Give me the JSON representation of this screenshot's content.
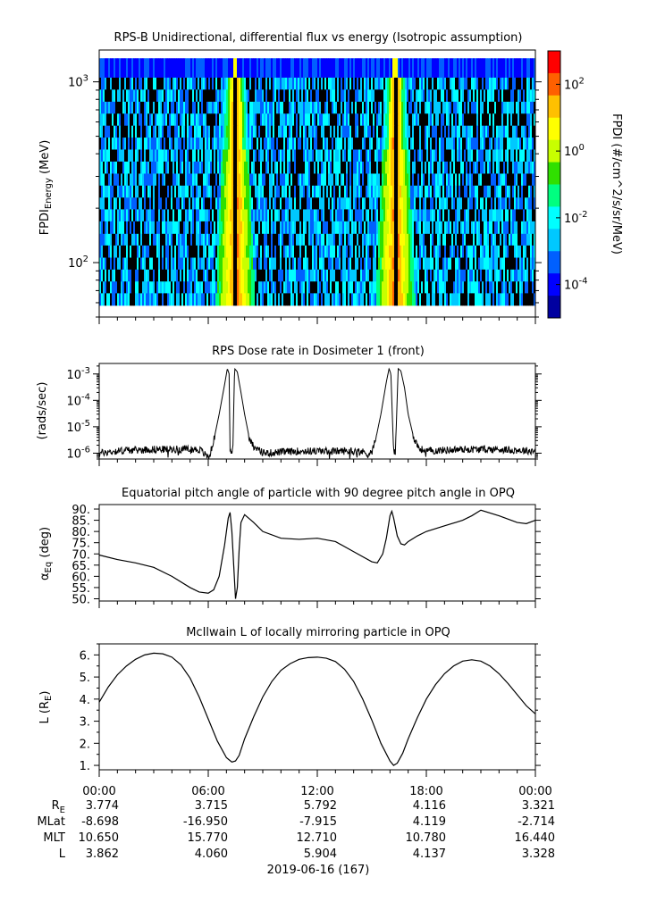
{
  "chart_data": [
    {
      "type": "heatmap",
      "title": "RPS-B  Unidirectional, differential flux vs energy (Isotropic assumption)",
      "ylabel": "FPDI",
      "ylabel_sub": "Energy",
      "ylabel_unit": "(MeV)",
      "y_scale": "log",
      "ylim": [
        50,
        1500
      ],
      "y_ticks": [
        {
          "value": 100,
          "base": "10",
          "exp": "2"
        },
        {
          "value": 1000,
          "base": "10",
          "exp": "3"
        }
      ],
      "x_range_hours": [
        0,
        24
      ],
      "energy_bins": [
        58,
        68,
        79,
        92,
        107,
        125,
        145,
        170,
        198,
        230,
        268,
        312,
        364,
        424,
        494,
        575,
        670,
        780,
        910,
        1060,
        1350
      ],
      "enhancement_centers_hours": [
        7.5,
        16.3
      ],
      "colorbar": {
        "label": "FPDI (#/cm^2/s/sr/MeV)",
        "scale": "log",
        "range_log10": [
          -5,
          3
        ],
        "ticks": [
          {
            "base": "10",
            "exp": "2",
            "value": 2
          },
          {
            "base": "10",
            "exp": "0",
            "value": 0
          },
          {
            "base": "10",
            "exp": "-2",
            "value": -2
          },
          {
            "base": "10",
            "exp": "-4",
            "value": -4
          }
        ],
        "colors": [
          "#0000a0",
          "#0000ff",
          "#0060ff",
          "#00c8ff",
          "#00ffff",
          "#00ff80",
          "#30e000",
          "#c8ff00",
          "#ffff00",
          "#ffc000",
          "#ff6000",
          "#ff0000"
        ]
      }
    },
    {
      "type": "line",
      "title": "RPS  Dose rate in Dosimeter 1 (front)",
      "ylabel": "(rads/sec)",
      "y_scale": "log",
      "ylim": [
        6e-07,
        0.0025
      ],
      "y_ticks": [
        {
          "value": 1e-06,
          "base": "10",
          "exp": "-6"
        },
        {
          "value": 1e-05,
          "base": "10",
          "exp": "-5"
        },
        {
          "value": 0.0001,
          "base": "10",
          "exp": "-4"
        },
        {
          "value": 0.001,
          "base": "10",
          "exp": "-3"
        }
      ],
      "x": [
        0,
        0.5,
        1,
        1.5,
        2,
        3,
        4,
        5,
        5.6,
        5.8,
        6.05,
        6.3,
        6.6,
        6.9,
        7.05,
        7.15,
        7.2,
        7.35,
        7.45,
        7.6,
        7.8,
        8.0,
        8.25,
        8.5,
        8.8,
        9.2,
        10,
        11,
        12,
        13,
        14,
        14.6,
        14.8,
        15.0,
        15.2,
        15.5,
        15.8,
        15.95,
        16.05,
        16.2,
        16.3,
        16.45,
        16.6,
        16.8,
        17.0,
        17.3,
        17.6,
        18,
        19,
        20,
        21,
        22,
        23,
        24
      ],
      "values": [
        1e-06,
        1.1e-06,
        1.2e-06,
        1.3e-06,
        1.3e-06,
        1.4e-06,
        1.4e-06,
        1.45e-06,
        1.3e-06,
        9e-07,
        7e-07,
        3e-06,
        3e-05,
        0.0004,
        0.0016,
        0.001,
        1e-06,
        1.2e-06,
        0.0016,
        0.0012,
        0.0002,
        3e-05,
        4e-06,
        1.8e-06,
        1.2e-06,
        1e-06,
        1.1e-06,
        1.2e-06,
        1.2e-06,
        1.2e-06,
        1.2e-06,
        1.1e-06,
        9e-07,
        1.1e-06,
        3e-06,
        3e-05,
        0.0005,
        0.0016,
        0.001,
        1e-06,
        1.1e-06,
        0.0016,
        0.0013,
        0.0003,
        3e-05,
        4e-06,
        1.5e-06,
        1.2e-06,
        1.3e-06,
        1.4e-06,
        1.4e-06,
        1.4e-06,
        1.3e-06,
        1.2e-06
      ]
    },
    {
      "type": "line",
      "title": "Equatorial pitch angle of particle with 90 degree pitch angle in OPQ",
      "ylabel": "α",
      "ylabel_sub": "Eq",
      "ylabel_unit": "(deg)",
      "ylim": [
        49,
        92
      ],
      "y_ticks": [
        "50.",
        "55.",
        "60.",
        "65.",
        "70.",
        "75.",
        "80.",
        "85.",
        "90."
      ],
      "x": [
        0,
        1,
        2,
        3,
        4,
        5,
        5.5,
        6.0,
        6.3,
        6.6,
        6.9,
        7.1,
        7.2,
        7.3,
        7.4,
        7.5,
        7.6,
        7.7,
        7.8,
        8.0,
        8.5,
        9,
        10,
        11,
        12,
        13,
        14,
        15,
        15.3,
        15.6,
        15.8,
        16.0,
        16.1,
        16.2,
        16.4,
        16.6,
        16.8,
        17.0,
        17.5,
        18,
        19,
        20,
        20.5,
        21,
        22,
        23,
        23.5,
        24
      ],
      "values": [
        69.5,
        67.5,
        66,
        64,
        60,
        55,
        53,
        52.5,
        54,
        60,
        74,
        86,
        88.5,
        80,
        65,
        50,
        55,
        72,
        84,
        87.5,
        84,
        80,
        77,
        76.5,
        77,
        75.5,
        71,
        66.5,
        66,
        70,
        77,
        87,
        89,
        86,
        78,
        74.5,
        74,
        75.5,
        78,
        80,
        82.5,
        85,
        87,
        89.5,
        87,
        84,
        83.5,
        85
      ]
    },
    {
      "type": "line",
      "title": "McIlwain L of locally mirroring particle in OPQ",
      "ylabel": "L (R",
      "ylabel_sub": "E",
      "ylabel_unit": ")",
      "ylim": [
        0.8,
        6.5
      ],
      "y_ticks": [
        "1.",
        "2.",
        "3.",
        "4.",
        "5.",
        "6."
      ],
      "x": [
        0,
        0.5,
        1,
        1.5,
        2,
        2.5,
        3,
        3.5,
        4,
        4.5,
        5,
        5.5,
        6,
        6.5,
        7,
        7.3,
        7.5,
        7.7,
        8,
        8.5,
        9,
        9.5,
        10,
        10.5,
        11,
        11.5,
        12,
        12.5,
        13,
        13.5,
        14,
        14.5,
        15,
        15.5,
        16,
        16.2,
        16.4,
        16.7,
        17,
        17.5,
        18,
        18.5,
        19,
        19.5,
        20,
        20.5,
        21,
        21.5,
        22,
        22.5,
        23,
        23.5,
        24
      ],
      "values": [
        3.86,
        4.55,
        5.1,
        5.5,
        5.8,
        6.0,
        6.08,
        6.05,
        5.9,
        5.55,
        4.95,
        4.1,
        3.1,
        2.1,
        1.35,
        1.15,
        1.2,
        1.45,
        2.2,
        3.2,
        4.1,
        4.8,
        5.3,
        5.6,
        5.8,
        5.88,
        5.9,
        5.85,
        5.7,
        5.35,
        4.8,
        4.0,
        3.05,
        2.0,
        1.2,
        1.0,
        1.1,
        1.55,
        2.2,
        3.15,
        4.0,
        4.65,
        5.15,
        5.5,
        5.72,
        5.78,
        5.72,
        5.5,
        5.15,
        4.7,
        4.2,
        3.7,
        3.33
      ]
    }
  ],
  "x_axis": {
    "tick_labels": [
      "00:00",
      "06:00",
      "12:00",
      "18:00",
      "00:00"
    ],
    "rows": [
      {
        "label": "R",
        "label_sub": "E",
        "values": [
          "3.774",
          "3.715",
          "5.792",
          "4.116",
          "3.321"
        ]
      },
      {
        "label": "MLat",
        "values": [
          "-8.698",
          "-16.950",
          "-7.915",
          "4.119",
          "-2.714"
        ]
      },
      {
        "label": "MLT",
        "values": [
          "10.650",
          "15.770",
          "12.710",
          "10.780",
          "16.440"
        ]
      },
      {
        "label": "L",
        "values": [
          "3.862",
          "4.060",
          "5.904",
          "4.137",
          "3.328"
        ]
      }
    ],
    "date": "2019-06-16 (167)"
  }
}
